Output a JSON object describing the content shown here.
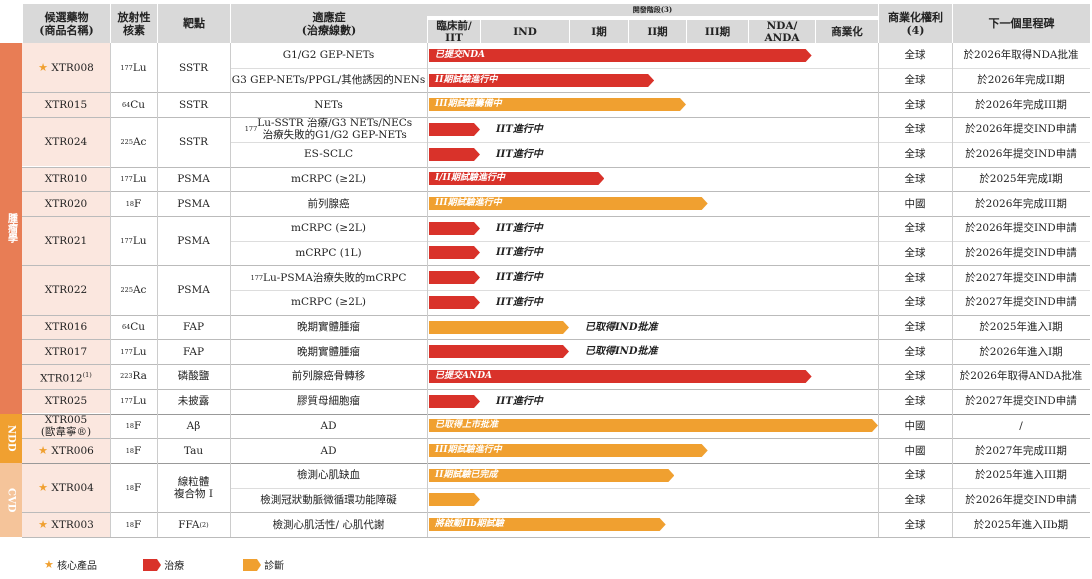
{
  "header": {
    "candidate": "候選藥物\n(商品名稱)",
    "isotope": "放射性\n核素",
    "target": "靶點",
    "indication": "適應症\n(治療線數)",
    "stage": "開發階段(3)",
    "rights": "商業化權利(4)",
    "milestone": "下一個里程碑",
    "stages": [
      "臨床前/\nIIT",
      "IND",
      "I期",
      "II期",
      "III期",
      "NDA/\nANDA",
      "商業化"
    ]
  },
  "categories": [
    {
      "name": "腫瘤學",
      "color": "#e87d55"
    },
    {
      "name": "NDD",
      "color": "#f0a030"
    },
    {
      "name": "CVD",
      "color": "#f5c49a"
    }
  ],
  "rows": [
    {
      "star": true,
      "candidate": "XTR008",
      "isotope": "177Lu",
      "target": "SSTR",
      "indication": "G1/G2 GEP-NETs",
      "bar": {
        "type": "treatment",
        "stage": 5.95,
        "label": "已提交NDA"
      },
      "rights": "全球",
      "milestone": "於2026年取得NDA批准"
    },
    {
      "indication": "G3 GEP-NETs/PPGL/其他誘因的NENs",
      "bar": {
        "type": "treatment",
        "stage": 3.45,
        "label": "II期試驗進行中"
      },
      "rights": "全球",
      "milestone": "於2026年完成II期"
    },
    {
      "candidate": "XTR015",
      "isotope": "64Cu",
      "target": "SSTR",
      "indication": "NETs",
      "bar": {
        "type": "diagnostic",
        "stage": 4.0,
        "label": "III期試驗籌備中"
      },
      "rights": "全球",
      "milestone": "於2026年完成III期"
    },
    {
      "candidate": "XTR024",
      "isotope": "225Ac",
      "target": "SSTR",
      "indication": "177Lu-SSTR 治療/G3 NETs/NECs\n治療失敗的G1/G2 GEP-NETs",
      "bar": {
        "type": "treatment",
        "stage": 1.0,
        "after": "IIT進行中"
      },
      "rights": "全球",
      "milestone": "於2026年提交IND申請"
    },
    {
      "indication": "ES-SCLC",
      "bar": {
        "type": "treatment",
        "stage": 1.0,
        "after": "IIT進行中"
      },
      "rights": "全球",
      "milestone": "於2026年提交IND申請"
    },
    {
      "candidate": "XTR010",
      "isotope": "177Lu",
      "target": "PSMA",
      "indication": "mCRPC (≥2L)",
      "bar": {
        "type": "treatment",
        "stage": 2.6,
        "label": "I/II期試驗進行中"
      },
      "rights": "全球",
      "milestone": "於2025年完成I期"
    },
    {
      "candidate": "XTR020",
      "isotope": "18F",
      "target": "PSMA",
      "indication": "前列腺癌",
      "bar": {
        "type": "diagnostic",
        "stage": 4.35,
        "label": "III期試驗進行中"
      },
      "rights": "中國",
      "milestone": "於2026年完成III期"
    },
    {
      "candidate": "XTR021",
      "isotope": "177Lu",
      "target": "PSMA",
      "indication": "mCRPC (≥2L)",
      "bar": {
        "type": "treatment",
        "stage": 1.0,
        "after": "IIT進行中"
      },
      "rights": "全球",
      "milestone": "於2026年提交IND申請"
    },
    {
      "indication": "mCRPC (1L)",
      "bar": {
        "type": "treatment",
        "stage": 1.0,
        "after": "IIT進行中"
      },
      "rights": "全球",
      "milestone": "於2026年提交IND申請"
    },
    {
      "candidate": "XTR022",
      "isotope": "225Ac",
      "target": "PSMA",
      "indication": "177Lu-PSMA治療失敗的mCRPC",
      "bar": {
        "type": "treatment",
        "stage": 1.0,
        "after": "IIT進行中"
      },
      "rights": "全球",
      "milestone": "於2027年提交IND申請"
    },
    {
      "indication": "mCRPC (≥2L)",
      "bar": {
        "type": "treatment",
        "stage": 1.0,
        "after": "IIT進行中"
      },
      "rights": "全球",
      "milestone": "於2027年提交IND申請"
    },
    {
      "candidate": "XTR016",
      "isotope": "64Cu",
      "target": "FAP",
      "indication": "晚期實體腫瘤",
      "bar": {
        "type": "diagnostic",
        "stage": 2.0,
        "after": "已取得IND批准"
      },
      "rights": "全球",
      "milestone": "於2025年進入I期"
    },
    {
      "candidate": "XTR017",
      "isotope": "177Lu",
      "target": "FAP",
      "indication": "晚期實體腫瘤",
      "bar": {
        "type": "treatment",
        "stage": 2.0,
        "after": "已取得IND批准"
      },
      "rights": "全球",
      "milestone": "於2026年進入I期"
    },
    {
      "candidate": "XTR012(1)",
      "isotope": "223Ra",
      "target": "磷酸鹽",
      "indication": "前列腺癌骨轉移",
      "bar": {
        "type": "treatment",
        "stage": 5.95,
        "label": "已提交ANDA"
      },
      "rights": "全球",
      "milestone": "於2026年取得ANDA批准"
    },
    {
      "candidate": "XTR025",
      "isotope": "177Lu",
      "target": "未披露",
      "indication": "膠質母細胞瘤",
      "bar": {
        "type": "treatment",
        "stage": 1.0,
        "after": "IIT進行中"
      },
      "rights": "全球",
      "milestone": "於2027年提交IND申請"
    },
    {
      "candidate": "XTR005\n(歐韋寧®)",
      "isotope": "18F",
      "target": "Aβ",
      "indication": "AD",
      "bar": {
        "type": "diagnostic",
        "stage": 7.1,
        "label": "已取得上市批准"
      },
      "rights": "中國",
      "milestone": "/"
    },
    {
      "star": true,
      "candidate": "XTR006",
      "isotope": "18F",
      "target": "Tau",
      "indication": "AD",
      "bar": {
        "type": "diagnostic",
        "stage": 4.35,
        "label": "III期試驗進行中"
      },
      "rights": "中國",
      "milestone": "於2027年完成III期"
    },
    {
      "star": true,
      "candidate": "XTR004",
      "isotope": "18F",
      "target": "線粒體\n複合物 I",
      "indication": "檢測心肌缺血",
      "bar": {
        "type": "diagnostic",
        "stage": 3.8,
        "label": "II期試驗已完成"
      },
      "rights": "全球",
      "milestone": "於2025年進入III期"
    },
    {
      "indication": "檢測冠狀動脈微循環功能障礙",
      "bar": {
        "type": "diagnostic",
        "stage": 1.0
      },
      "rights": "全球",
      "milestone": "於2026年提交IND申請"
    },
    {
      "star": true,
      "candidate": "XTR003",
      "isotope": "18F",
      "target": "FFA(2)",
      "indication": "檢測心肌活性/ 心肌代謝",
      "bar": {
        "type": "diagnostic",
        "stage": 3.65,
        "label": "將啟動IIb期試驗"
      },
      "rights": "全球",
      "milestone": "於2025年進入IIb期"
    }
  ],
  "legend": {
    "core": "核心產品",
    "treatment": "治療",
    "diagnostic": "診斷"
  },
  "colors": {
    "treatment": "#d9322a",
    "diagnostic": "#f0a030",
    "star": "#f0a030"
  }
}
